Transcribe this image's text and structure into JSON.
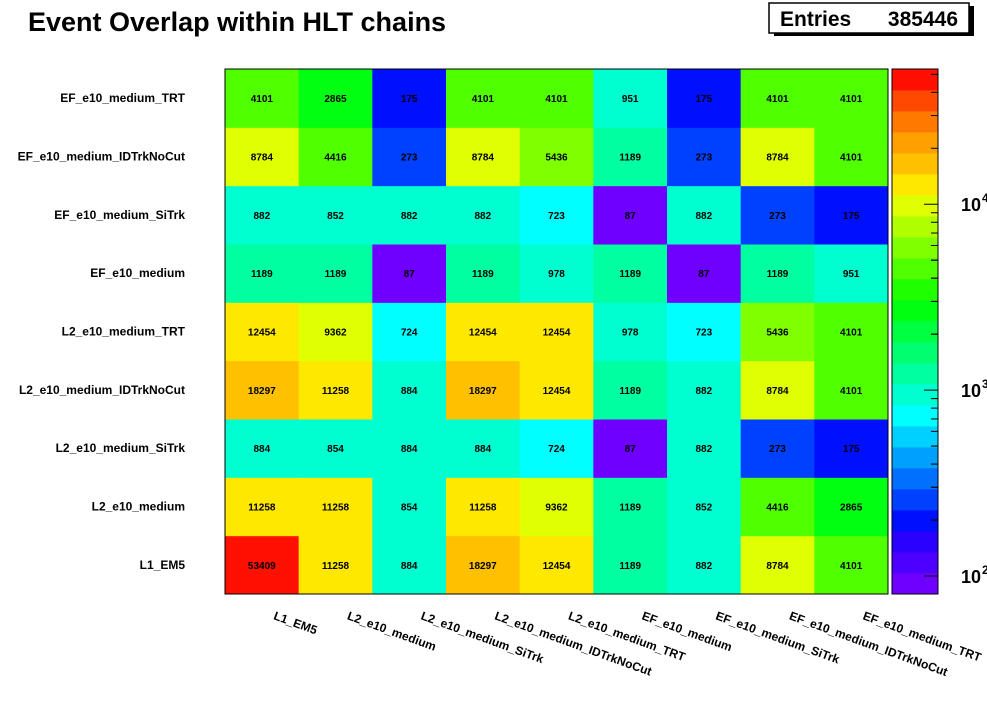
{
  "title": "Event Overlap within HLT chains",
  "stats": {
    "label": "Entries",
    "value": "385446"
  },
  "chart_data": {
    "type": "heatmap",
    "title": "Event Overlap within HLT chains",
    "x_categories": [
      "L1_EM5",
      "L2_e10_medium",
      "L2_e10_medium_SiTrk",
      "L2_e10_medium_IDTrkNoCut",
      "L2_e10_medium_TRT",
      "EF_e10_medium",
      "EF_e10_medium_SiTrk",
      "EF_e10_medium_IDTrkNoCut",
      "EF_e10_medium_TRT"
    ],
    "y_categories": [
      "L1_EM5",
      "L2_e10_medium",
      "L2_e10_medium_SiTrk",
      "L2_e10_medium_IDTrkNoCut",
      "L2_e10_medium_TRT",
      "EF_e10_medium",
      "EF_e10_medium_SiTrk",
      "EF_e10_medium_IDTrkNoCut",
      "EF_e10_medium_TRT"
    ],
    "values": [
      [
        53409,
        11258,
        884,
        18297,
        12454,
        1189,
        882,
        8784,
        4101
      ],
      [
        11258,
        11258,
        854,
        11258,
        9362,
        1189,
        852,
        4416,
        2865
      ],
      [
        884,
        854,
        884,
        884,
        724,
        87,
        882,
        273,
        175
      ],
      [
        18297,
        11258,
        884,
        18297,
        12454,
        1189,
        882,
        8784,
        4101
      ],
      [
        12454,
        9362,
        724,
        12454,
        12454,
        978,
        723,
        5436,
        4101
      ],
      [
        1189,
        1189,
        87,
        1189,
        978,
        1189,
        87,
        1189,
        951
      ],
      [
        882,
        852,
        882,
        882,
        723,
        87,
        882,
        273,
        175
      ],
      [
        8784,
        4416,
        273,
        8784,
        5436,
        1189,
        273,
        8784,
        4101
      ],
      [
        4101,
        2865,
        175,
        4101,
        4101,
        951,
        175,
        4101,
        4101
      ]
    ],
    "z_scale": "log",
    "z_range": [
      80,
      53409
    ],
    "z_ticks": [
      {
        "value": 100,
        "base": "10",
        "exp": "2"
      },
      {
        "value": 1000,
        "base": "10",
        "exp": "3"
      },
      {
        "value": 10000,
        "base": "10",
        "exp": "4"
      }
    ],
    "palette": [
      "#6f00ff",
      "#4d00ff",
      "#2a00ff",
      "#0010ff",
      "#0040ff",
      "#0070ff",
      "#00a0ff",
      "#00d0ff",
      "#00ffff",
      "#00ffd0",
      "#00ffa0",
      "#00ff70",
      "#00ff40",
      "#00ff10",
      "#20ff00",
      "#50ff00",
      "#80ff00",
      "#b0ff00",
      "#e0ff00",
      "#ffe800",
      "#ffc000",
      "#ffa000",
      "#ff7800",
      "#ff4800",
      "#ff1000"
    ],
    "grid": false,
    "legend": "right color scale"
  }
}
